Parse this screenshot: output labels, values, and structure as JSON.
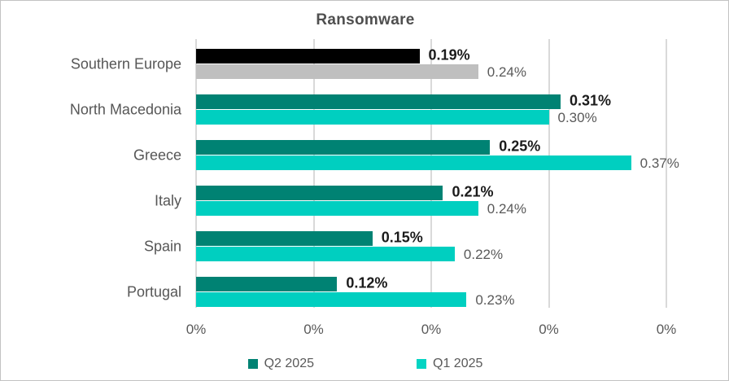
{
  "chart_data": {
    "type": "bar",
    "orientation": "horizontal",
    "title": "Ransomware",
    "categories": [
      "Southern Europe",
      "North Macedonia",
      "Greece",
      "Italy",
      "Spain",
      "Portugal"
    ],
    "series": [
      {
        "name": "Q2 2025",
        "color": "#008273",
        "values": [
          0.19,
          0.31,
          0.25,
          0.21,
          0.15,
          0.12
        ],
        "labels": [
          "0.19%",
          "0.31%",
          "0.25%",
          "0.21%",
          "0.15%",
          "0.12%"
        ],
        "point_colors": [
          "#000000",
          null,
          null,
          null,
          null,
          null
        ]
      },
      {
        "name": "Q1 2025",
        "color": "#00CFC0",
        "values": [
          0.24,
          0.3,
          0.37,
          0.24,
          0.22,
          0.23
        ],
        "labels": [
          "0.24%",
          "0.30%",
          "0.37%",
          "0.24%",
          "0.22%",
          "0.23%"
        ],
        "point_colors": [
          "#BFBFBF",
          null,
          null,
          null,
          null,
          null
        ]
      }
    ],
    "xlim": [
      0,
      0.4
    ],
    "x_tick_labels": [
      "0%",
      "0%",
      "0%",
      "0%",
      "0%"
    ],
    "grid": "vertical",
    "legend_position": "bottom-center"
  },
  "legend": {
    "items": [
      {
        "label": "Q2 2025",
        "swatch_color": "#008273"
      },
      {
        "label": "Q1 2025",
        "swatch_color": "#04D4C3"
      }
    ]
  },
  "colors": {
    "background": "#ffffff",
    "border": "#c3c3c3",
    "gridline": "#d9d9d9",
    "title_text": "#4f4f4f",
    "category_text": "#565656",
    "tick_text": "#595959",
    "q2_value_text": "#1b1b1b",
    "q1_value_text": "#595959"
  }
}
